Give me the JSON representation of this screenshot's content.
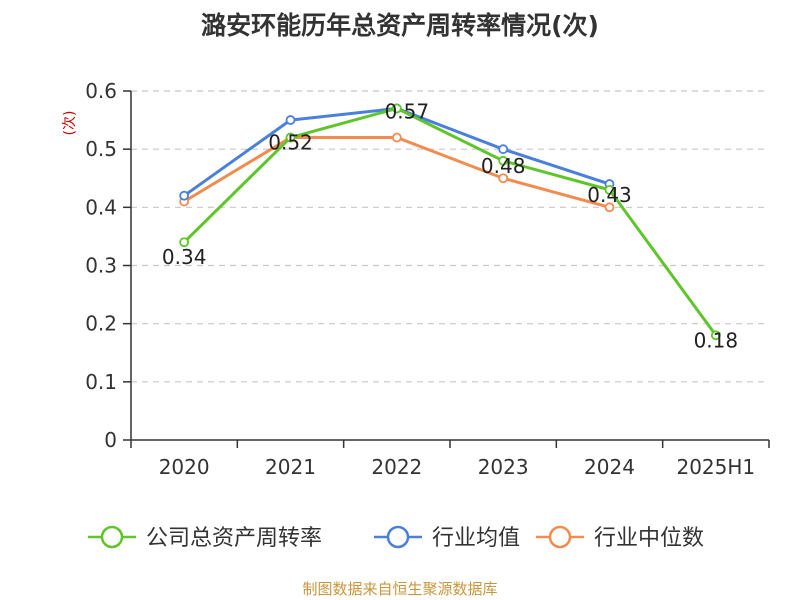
{
  "chart_data": {
    "type": "line",
    "title": "潞安环能历年总资产周转率情况(次)",
    "ylabel": "(次)",
    "xlabel": "",
    "categories": [
      "2020",
      "2021",
      "2022",
      "2023",
      "2024",
      "2025H1"
    ],
    "y_ticks": [
      "0",
      "0.1",
      "0.2",
      "0.3",
      "0.4",
      "0.5",
      "0.6"
    ],
    "ylim": [
      0,
      0.6
    ],
    "grid": true,
    "legend_position": "bottom",
    "series": [
      {
        "name": "公司总资产周转率",
        "color": "#5ec52a",
        "values": [
          0.34,
          0.52,
          0.57,
          0.48,
          0.43,
          0.18
        ],
        "data_labels": [
          "0.34",
          "0.52",
          "0.57",
          "0.48",
          "0.43",
          "0.18"
        ]
      },
      {
        "name": "行业均值",
        "color": "#4a7fdc",
        "values": [
          0.42,
          0.55,
          0.57,
          0.5,
          0.44,
          null
        ]
      },
      {
        "name": "行业中位数",
        "color": "#f28c4e",
        "values": [
          0.41,
          0.52,
          0.52,
          0.45,
          0.4,
          null
        ]
      }
    ]
  },
  "source": "制图数据来自恒生聚源数据库"
}
